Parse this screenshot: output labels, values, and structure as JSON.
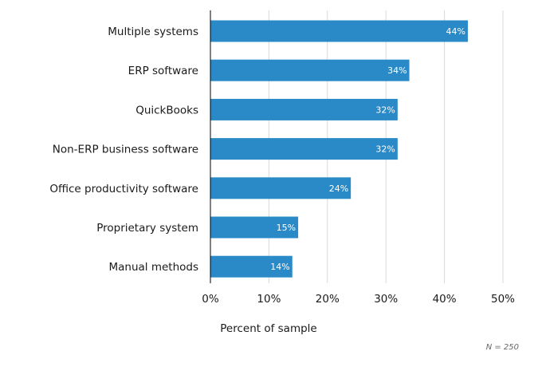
{
  "chart_data": {
    "type": "bar",
    "orientation": "horizontal",
    "categories": [
      "Multiple systems",
      "ERP software",
      "QuickBooks",
      "Non-ERP business software",
      "Office productivity software",
      "Proprietary system",
      "Manual methods"
    ],
    "values": [
      44,
      34,
      32,
      32,
      24,
      15,
      14
    ],
    "value_labels": [
      "44%",
      "34%",
      "32%",
      "32%",
      "24%",
      "15%",
      "14%"
    ],
    "xlabel": "Percent of sample",
    "ylabel": "",
    "xlim": [
      0,
      50
    ],
    "xticks": [
      0,
      10,
      20,
      30,
      40,
      50
    ],
    "xtick_labels": [
      "0%",
      "10%",
      "20%",
      "30%",
      "40%",
      "50%"
    ],
    "grid": "vertical",
    "legend": "none",
    "bar_color": "#2a8ac8",
    "annotation": "N = 250"
  }
}
